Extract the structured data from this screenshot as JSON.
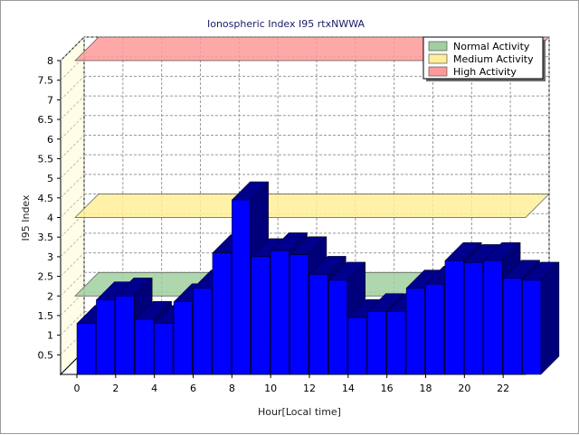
{
  "chart_data": {
    "type": "bar",
    "title": "Ionospheric Index I95 rtxNWWA",
    "xlabel": "Hour[Local time]",
    "ylabel": "I95 Index",
    "ylim": [
      0,
      8
    ],
    "yticks": [
      "0.5",
      "1",
      "1.5",
      "2",
      "2.5",
      "3",
      "3.5",
      "4",
      "4.5",
      "5",
      "5.5",
      "6",
      "6.5",
      "7",
      "7.5",
      "8"
    ],
    "xticks": [
      "0",
      "2",
      "4",
      "6",
      "8",
      "10",
      "12",
      "14",
      "16",
      "18",
      "20",
      "22"
    ],
    "x": [
      0,
      1,
      2,
      3,
      4,
      5,
      6,
      7,
      8,
      9,
      10,
      11,
      12,
      13,
      14,
      15,
      16,
      17,
      18,
      19,
      20,
      21,
      22,
      23
    ],
    "values": [
      1.3,
      1.9,
      2.0,
      1.4,
      1.3,
      1.85,
      2.2,
      3.1,
      4.45,
      3.0,
      3.15,
      3.05,
      2.55,
      2.4,
      1.45,
      1.6,
      1.6,
      2.2,
      2.3,
      2.9,
      2.85,
      2.9,
      2.45,
      2.4
    ],
    "bands": [
      {
        "name": "Normal Activity",
        "level": 2,
        "color": "#a0d0a0"
      },
      {
        "name": "Medium Activity",
        "level": 4,
        "color": "#ffee99"
      },
      {
        "name": "High Activity",
        "level": 8,
        "color": "#ff9999"
      }
    ],
    "bar_color": "#0000ff",
    "bar_top_color": "#00008c",
    "bar_side_color": "#00007a",
    "grid": true,
    "legend_position": "top-right"
  }
}
